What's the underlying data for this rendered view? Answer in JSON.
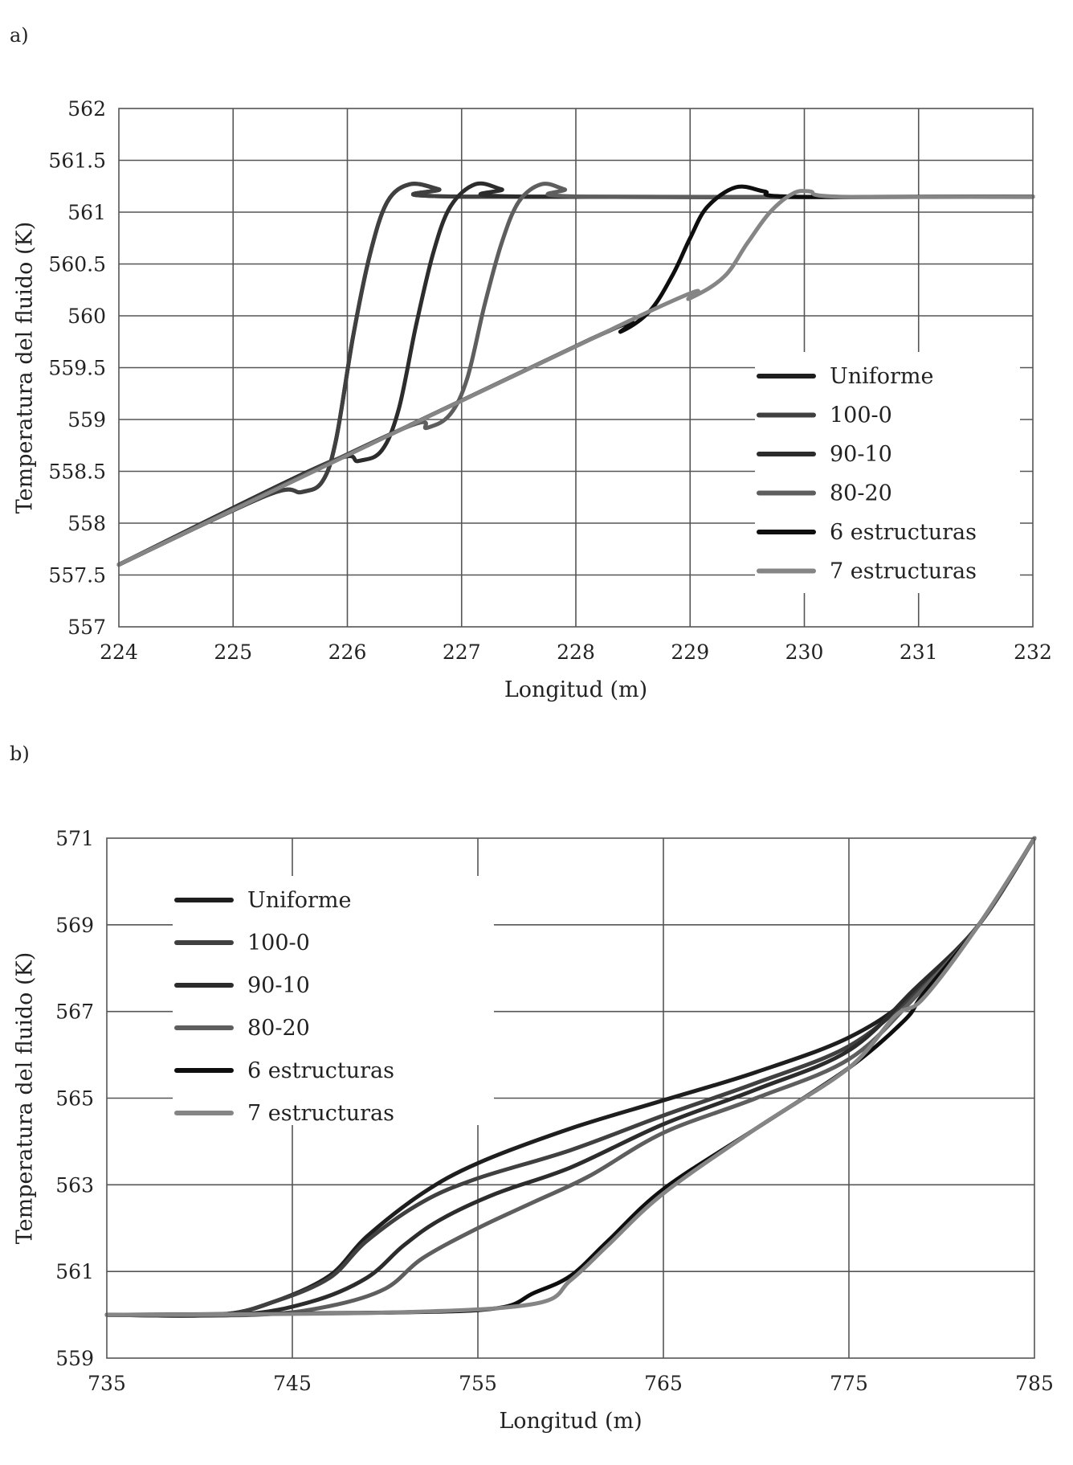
{
  "chart_data": [
    {
      "panel_label": "a)",
      "type": "line",
      "xlabel": "Longitud (m)",
      "ylabel": "Temperatura del fluido (K)",
      "xlim": [
        224,
        232
      ],
      "ylim": [
        557,
        562
      ],
      "xticks": [
        224,
        225,
        226,
        227,
        228,
        229,
        230,
        231,
        232
      ],
      "yticks": [
        557,
        557.5,
        558,
        558.5,
        559,
        559.5,
        560,
        560.5,
        561,
        561.5,
        562
      ],
      "xtick_labels": [
        "224",
        "225",
        "226",
        "227",
        "228",
        "229",
        "230",
        "231",
        "232"
      ],
      "ytick_labels": [
        "557",
        "557.5",
        "558",
        "558.5",
        "559",
        "559.5",
        "560",
        "560.5",
        "561",
        "561.5",
        "562"
      ],
      "legend_position": "bottom-right",
      "series": [
        {
          "name": "Uniforme",
          "color": "#1e1e1e",
          "points": [
            [
              224,
              557.6
            ],
            [
              225.3,
              558.27
            ],
            [
              225.6,
              558.3
            ],
            [
              225.78,
              558.4
            ],
            [
              225.9,
              558.8
            ],
            [
              226.05,
              559.8
            ],
            [
              226.2,
              560.6
            ],
            [
              226.35,
              561.1
            ],
            [
              226.55,
              561.27
            ],
            [
              226.8,
              561.22
            ],
            [
              227.0,
              561.15
            ],
            [
              232,
              561.15
            ]
          ]
        },
        {
          "name": "100-0",
          "color": "#404040",
          "points": [
            [
              224,
              557.6
            ],
            [
              225.3,
              558.27
            ],
            [
              225.6,
              558.3
            ],
            [
              225.78,
              558.4
            ],
            [
              225.9,
              558.8
            ],
            [
              226.05,
              559.8
            ],
            [
              226.2,
              560.6
            ],
            [
              226.35,
              561.1
            ],
            [
              226.55,
              561.27
            ],
            [
              226.8,
              561.22
            ],
            [
              227.0,
              561.15
            ],
            [
              232,
              561.15
            ]
          ]
        },
        {
          "name": "90-10",
          "color": "#2c2c2c",
          "points": [
            [
              224,
              557.6
            ],
            [
              225.8,
              558.57
            ],
            [
              226.1,
              558.6
            ],
            [
              226.3,
              558.7
            ],
            [
              226.45,
              559.1
            ],
            [
              226.6,
              559.9
            ],
            [
              226.75,
              560.6
            ],
            [
              226.9,
              561.05
            ],
            [
              227.12,
              561.27
            ],
            [
              227.35,
              561.22
            ],
            [
              227.55,
              561.15
            ],
            [
              232,
              561.15
            ]
          ]
        },
        {
          "name": "80-20",
          "color": "#5e5e5e",
          "points": [
            [
              224,
              557.6
            ],
            [
              226.4,
              558.87
            ],
            [
              226.7,
              558.92
            ],
            [
              226.9,
              559.05
            ],
            [
              227.05,
              559.4
            ],
            [
              227.2,
              560.1
            ],
            [
              227.35,
              560.7
            ],
            [
              227.5,
              561.1
            ],
            [
              227.7,
              561.27
            ],
            [
              227.9,
              561.22
            ],
            [
              228.1,
              561.15
            ],
            [
              232,
              561.15
            ]
          ]
        },
        {
          "name": "6 estructuras",
          "color": "#0e0e0e",
          "points": [
            [
              224,
              557.6
            ],
            [
              228.1,
              559.76
            ],
            [
              228.4,
              559.85
            ],
            [
              228.65,
              560.05
            ],
            [
              228.85,
              560.4
            ],
            [
              229.0,
              560.75
            ],
            [
              229.15,
              561.05
            ],
            [
              229.4,
              561.24
            ],
            [
              229.65,
              561.2
            ],
            [
              229.9,
              561.15
            ],
            [
              232,
              561.15
            ]
          ]
        },
        {
          "name": "7 estructuras",
          "color": "#858585",
          "points": [
            [
              224,
              557.6
            ],
            [
              228.6,
              560.02
            ],
            [
              229.0,
              560.17
            ],
            [
              229.3,
              560.38
            ],
            [
              229.5,
              560.7
            ],
            [
              229.7,
              561.0
            ],
            [
              229.9,
              561.18
            ],
            [
              230.05,
              561.2
            ],
            [
              230.3,
              561.15
            ],
            [
              232,
              561.15
            ]
          ]
        }
      ]
    },
    {
      "panel_label": "b)",
      "type": "line",
      "xlabel": "Longitud (m)",
      "ylabel": "Temperatura del fluido (K)",
      "xlim": [
        735,
        785
      ],
      "ylim": [
        559,
        571
      ],
      "xticks": [
        735,
        745,
        755,
        765,
        775,
        785
      ],
      "yticks": [
        559,
        561,
        563,
        565,
        567,
        569,
        571
      ],
      "xtick_labels": [
        "735",
        "745",
        "755",
        "765",
        "775",
        "785"
      ],
      "ytick_labels": [
        "559",
        "561",
        "563",
        "565",
        "567",
        "569",
        "571"
      ],
      "legend_position": "top-left",
      "series": [
        {
          "name": "Uniforme",
          "color": "#1e1e1e",
          "points": [
            [
              735,
              560
            ],
            [
              741,
              560
            ],
            [
              744,
              560.3
            ],
            [
              747,
              560.9
            ],
            [
              749,
              561.8
            ],
            [
              752,
              562.8
            ],
            [
              755,
              563.5
            ],
            [
              760,
              564.3
            ],
            [
              765,
              564.95
            ],
            [
              770,
              565.6
            ],
            [
              775,
              566.4
            ],
            [
              778.5,
              567.4
            ],
            [
              782,
              569
            ],
            [
              785,
              571
            ]
          ]
        },
        {
          "name": "100-0",
          "color": "#404040",
          "points": [
            [
              735,
              560
            ],
            [
              741,
              560
            ],
            [
              744,
              560.3
            ],
            [
              747,
              560.85
            ],
            [
              749,
              561.7
            ],
            [
              752,
              562.6
            ],
            [
              755,
              563.15
            ],
            [
              760,
              563.8
            ],
            [
              765,
              564.6
            ],
            [
              770,
              565.35
            ],
            [
              775,
              566.2
            ],
            [
              778.5,
              567.4
            ],
            [
              782,
              569
            ],
            [
              785,
              571
            ]
          ]
        },
        {
          "name": "90-10",
          "color": "#2c2c2c",
          "points": [
            [
              735,
              560
            ],
            [
              742,
              560
            ],
            [
              746,
              560.3
            ],
            [
              749,
              560.85
            ],
            [
              751,
              561.6
            ],
            [
              753,
              562.2
            ],
            [
              756,
              562.8
            ],
            [
              760,
              563.4
            ],
            [
              765,
              564.4
            ],
            [
              770,
              565.2
            ],
            [
              775,
              566.1
            ],
            [
              778.5,
              567.5
            ],
            [
              782,
              569
            ],
            [
              785,
              571
            ]
          ]
        },
        {
          "name": "80-20",
          "color": "#5e5e5e",
          "points": [
            [
              735,
              560
            ],
            [
              743,
              560
            ],
            [
              747,
              560.2
            ],
            [
              750,
              560.6
            ],
            [
              752,
              561.3
            ],
            [
              755,
              562.0
            ],
            [
              758,
              562.6
            ],
            [
              761,
              563.2
            ],
            [
              765,
              564.2
            ],
            [
              770,
              565.0
            ],
            [
              775,
              565.9
            ],
            [
              778.5,
              567.3
            ],
            [
              782,
              569
            ],
            [
              785,
              571
            ]
          ]
        },
        {
          "name": "6 estructuras",
          "color": "#0e0e0e",
          "points": [
            [
              735,
              560
            ],
            [
              750,
              560.05
            ],
            [
              756,
              560.15
            ],
            [
              758,
              560.5
            ],
            [
              760,
              560.9
            ],
            [
              762,
              561.7
            ],
            [
              765,
              562.9
            ],
            [
              770,
              564.3
            ],
            [
              775,
              565.7
            ],
            [
              778,
              566.8
            ],
            [
              779,
              567.4
            ],
            [
              782,
              569
            ],
            [
              785,
              571
            ]
          ]
        },
        {
          "name": "7 estructuras",
          "color": "#858585",
          "points": [
            [
              735,
              560
            ],
            [
              750,
              560.05
            ],
            [
              758,
              560.25
            ],
            [
              760,
              560.8
            ],
            [
              762,
              561.6
            ],
            [
              765,
              562.8
            ],
            [
              770,
              564.3
            ],
            [
              775,
              565.7
            ],
            [
              777.5,
              566.9
            ],
            [
              779,
              567.3
            ],
            [
              782,
              569
            ],
            [
              785,
              571
            ]
          ]
        }
      ]
    }
  ]
}
